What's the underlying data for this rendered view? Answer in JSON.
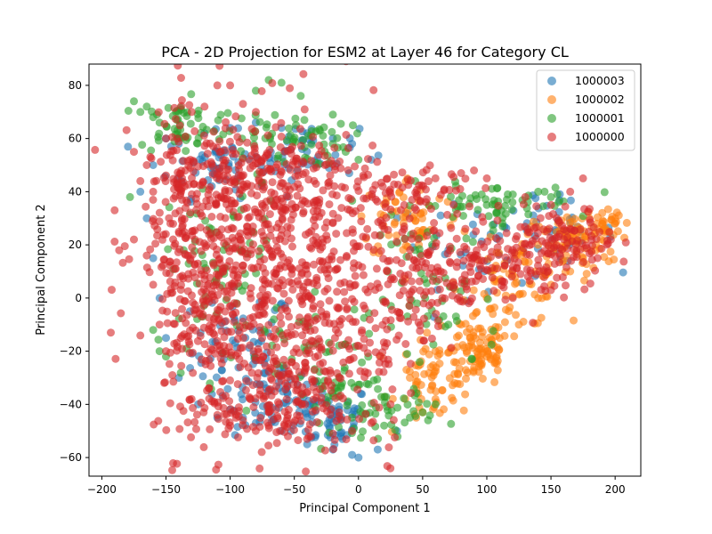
{
  "chart_data": {
    "type": "scatter",
    "title": "PCA - 2D Projection for ESM2 at Layer 46 for Category CL",
    "xlabel": "Principal Component 1",
    "ylabel": "Principal Component 2",
    "xlim": [
      -210,
      220
    ],
    "ylim": [
      -67,
      88
    ],
    "xticks": [
      -200,
      -150,
      -100,
      -50,
      0,
      50,
      100,
      150,
      200
    ],
    "yticks": [
      -60,
      -40,
      -20,
      0,
      20,
      40,
      60,
      80
    ],
    "grid": false,
    "legend_position": "upper right",
    "series": [
      {
        "name": "1000003",
        "color": "#1f77b4",
        "points": [
          [
            -150,
            60
          ],
          [
            -140,
            58
          ],
          [
            -120,
            62
          ],
          [
            -100,
            64
          ],
          [
            -80,
            66
          ],
          [
            -60,
            64
          ],
          [
            -40,
            62
          ],
          [
            -20,
            60
          ],
          [
            -5,
            58
          ],
          [
            10,
            52
          ],
          [
            -160,
            50
          ],
          [
            -170,
            40
          ],
          [
            -165,
            30
          ],
          [
            -160,
            15
          ],
          [
            -155,
            0
          ],
          [
            -150,
            -15
          ],
          [
            -140,
            -30
          ],
          [
            -125,
            -40
          ],
          [
            -100,
            -42
          ],
          [
            -80,
            -47
          ],
          [
            -60,
            -50
          ],
          [
            -40,
            -55
          ],
          [
            -20,
            -57
          ],
          [
            -5,
            -59
          ],
          [
            0,
            -60
          ],
          [
            15,
            -57
          ],
          [
            30,
            -50
          ],
          [
            -110,
            -45
          ],
          [
            -90,
            -45
          ]
        ],
        "blobs": [
          {
            "c": [
              -90,
              -20
            ],
            "s": [
              20,
              12
            ],
            "n": 60
          },
          {
            "c": [
              -60,
              -38
            ],
            "s": [
              18,
              7
            ],
            "n": 60
          },
          {
            "c": [
              -20,
              -45
            ],
            "s": [
              15,
              6
            ],
            "n": 50
          },
          {
            "c": [
              -110,
              50
            ],
            "s": [
              20,
              6
            ],
            "n": 50
          },
          {
            "c": [
              -40,
              55
            ],
            "s": [
              20,
              5
            ],
            "n": 40
          },
          {
            "c": [
              100,
              20
            ],
            "s": [
              40,
              8
            ],
            "n": 40
          },
          {
            "c": [
              150,
              25
            ],
            "s": [
              25,
              6
            ],
            "n": 30
          }
        ]
      },
      {
        "name": "1000002",
        "color": "#ff7f0e",
        "points": [
          [
            200,
            30
          ],
          [
            195,
            25
          ],
          [
            190,
            28
          ],
          [
            185,
            20
          ],
          [
            175,
            15
          ],
          [
            165,
            10
          ],
          [
            150,
            5
          ],
          [
            140,
            0
          ],
          [
            125,
            -10
          ],
          [
            110,
            -15
          ],
          [
            100,
            -22
          ],
          [
            95,
            -25
          ],
          [
            85,
            -28
          ],
          [
            75,
            -32
          ],
          [
            60,
            -38
          ],
          [
            50,
            -43
          ],
          [
            45,
            -45
          ],
          [
            40,
            -30
          ],
          [
            60,
            -20
          ],
          [
            80,
            -10
          ],
          [
            100,
            0
          ],
          [
            120,
            10
          ],
          [
            140,
            20
          ],
          [
            160,
            25
          ],
          [
            180,
            30
          ],
          [
            190,
            32
          ]
        ],
        "blobs": [
          {
            "c": [
              95,
              -20
            ],
            "s": [
              12,
              7
            ],
            "n": 80
          },
          {
            "c": [
              60,
              -30
            ],
            "s": [
              15,
              8
            ],
            "n": 70
          },
          {
            "c": [
              120,
              5
            ],
            "s": [
              20,
              8
            ],
            "n": 70
          },
          {
            "c": [
              165,
              20
            ],
            "s": [
              18,
              6
            ],
            "n": 70
          },
          {
            "c": [
              40,
              30
            ],
            "s": [
              20,
              8
            ],
            "n": 60
          },
          {
            "c": [
              190,
              28
            ],
            "s": [
              8,
              3
            ],
            "n": 30
          }
        ]
      },
      {
        "name": "1000001",
        "color": "#2ca02c",
        "points": [
          [
            -175,
            74
          ],
          [
            -170,
            70
          ],
          [
            -165,
            72
          ],
          [
            -160,
            68
          ],
          [
            -155,
            66
          ],
          [
            -178,
            38
          ],
          [
            -160,
            -12
          ],
          [
            -155,
            -20
          ],
          [
            -150,
            -22
          ],
          [
            -70,
            82
          ],
          [
            -60,
            81
          ],
          [
            -45,
            76
          ],
          [
            -80,
            78
          ],
          [
            -30,
            63
          ],
          [
            -20,
            58
          ],
          [
            -10,
            55
          ],
          [
            0,
            52
          ],
          [
            145,
            40
          ],
          [
            150,
            38
          ],
          [
            155,
            39
          ],
          [
            140,
            40
          ],
          [
            120,
            36
          ],
          [
            100,
            35
          ],
          [
            50,
            -43
          ],
          [
            60,
            -40
          ],
          [
            40,
            -45
          ],
          [
            20,
            -48
          ],
          [
            -5,
            -45
          ]
        ],
        "blobs": [
          {
            "c": [
              -140,
              65
            ],
            "s": [
              15,
              5
            ],
            "n": 50
          },
          {
            "c": [
              -60,
              60
            ],
            "s": [
              25,
              5
            ],
            "n": 60
          },
          {
            "c": [
              -20,
              -30
            ],
            "s": [
              20,
              12
            ],
            "n": 60
          },
          {
            "c": [
              -100,
              10
            ],
            "s": [
              25,
              20
            ],
            "n": 80
          },
          {
            "c": [
              100,
              35
            ],
            "s": [
              35,
              4
            ],
            "n": 60
          },
          {
            "c": [
              60,
              0
            ],
            "s": [
              25,
              15
            ],
            "n": 60
          },
          {
            "c": [
              20,
              -42
            ],
            "s": [
              20,
              5
            ],
            "n": 40
          }
        ]
      },
      {
        "name": "1000000",
        "color": "#d62728",
        "points": [
          [
            -190,
            33
          ],
          [
            -175,
            55
          ],
          [
            -170,
            44
          ],
          [
            -165,
            50
          ],
          [
            -160,
            40
          ],
          [
            -175,
            22
          ],
          [
            -165,
            16
          ],
          [
            -160,
            5
          ],
          [
            -155,
            -10
          ],
          [
            -150,
            -20
          ],
          [
            -145,
            -29
          ],
          [
            -130,
            -38
          ],
          [
            -110,
            -44
          ],
          [
            -90,
            -46
          ],
          [
            -70,
            -48
          ],
          [
            -55,
            -52
          ],
          [
            -40,
            -53
          ],
          [
            -20,
            -51
          ],
          [
            -5,
            -50
          ],
          [
            10,
            -47
          ],
          [
            25,
            -40
          ],
          [
            60,
            45
          ],
          [
            80,
            47
          ],
          [
            90,
            48
          ],
          [
            100,
            45
          ],
          [
            130,
            38
          ],
          [
            150,
            35
          ],
          [
            175,
            45
          ],
          [
            165,
            40
          ],
          [
            -100,
            80
          ],
          [
            -110,
            80
          ],
          [
            -120,
            72
          ],
          [
            -90,
            73
          ],
          [
            -130,
            70
          ],
          [
            -150,
            60
          ],
          [
            -100,
            -48
          ],
          [
            -80,
            -50
          ]
        ],
        "blobs": [
          {
            "c": [
              -100,
              20
            ],
            "s": [
              35,
              28
            ],
            "n": 420
          },
          {
            "c": [
              -60,
              -10
            ],
            "s": [
              30,
              25
            ],
            "n": 260
          },
          {
            "c": [
              -130,
              0
            ],
            "s": [
              15,
              30
            ],
            "n": 120
          },
          {
            "c": [
              -20,
              10
            ],
            "s": [
              20,
              25
            ],
            "n": 140
          },
          {
            "c": [
              20,
              0
            ],
            "s": [
              15,
              25
            ],
            "n": 100
          },
          {
            "c": [
              -80,
              45
            ],
            "s": [
              35,
              10
            ],
            "n": 140
          },
          {
            "c": [
              -60,
              -40
            ],
            "s": [
              30,
              8
            ],
            "n": 120
          },
          {
            "c": [
              70,
              12
            ],
            "s": [
              25,
              10
            ],
            "n": 120
          },
          {
            "c": [
              120,
              15
            ],
            "s": [
              25,
              8
            ],
            "n": 100
          },
          {
            "c": [
              165,
              22
            ],
            "s": [
              18,
              6
            ],
            "n": 80
          },
          {
            "c": [
              40,
              40
            ],
            "s": [
              25,
              6
            ],
            "n": 60
          },
          {
            "c": [
              -140,
              40
            ],
            "s": [
              10,
              12
            ],
            "n": 50
          }
        ]
      }
    ]
  }
}
